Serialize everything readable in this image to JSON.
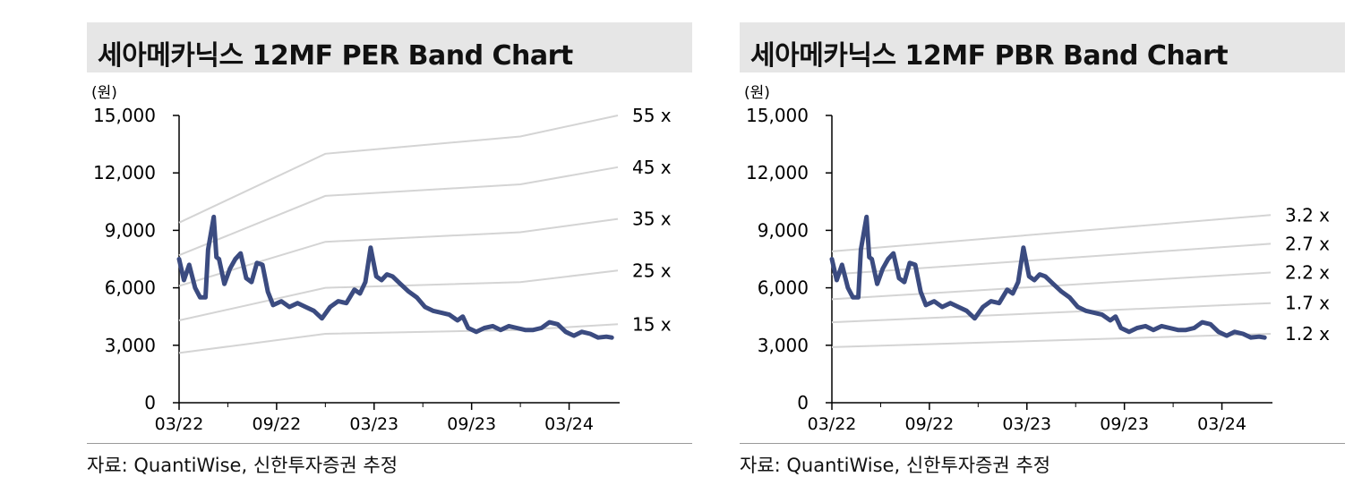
{
  "charts": [
    {
      "title": "세아메카닉스 12MF PER Band Chart",
      "source": "자료: QuantiWise, 신한투자증권 추정"
    },
    {
      "title": "세아메카닉스 12MF PBR Band Chart",
      "source": "자료: QuantiWise, 신한투자증권 추정"
    }
  ],
  "colors": {
    "price_line": "#3b4b80",
    "band_line": "#d4d4d4",
    "title_bg": "#e6e6e6",
    "axis": "#000000"
  },
  "chart_data": [
    {
      "type": "line",
      "title": "세아메카닉스 12MF PER Band Chart",
      "ylabel": "(원)",
      "ylim": [
        0,
        15000
      ],
      "yticks": [
        "0",
        "3,000",
        "6,000",
        "9,000",
        "12,000",
        "15,000"
      ],
      "xlim": [
        "2022-03",
        "2024-06"
      ],
      "xticks": [
        "03/22",
        "09/22",
        "03/23",
        "09/23",
        "03/24"
      ],
      "bands": [
        {
          "label": "55 x",
          "points": [
            [
              "2022-03",
              9400
            ],
            [
              "2022-12",
              13000
            ],
            [
              "2023-12",
              13900
            ],
            [
              "2024-06",
              15000
            ]
          ]
        },
        {
          "label": "45 x",
          "points": [
            [
              "2022-03",
              7700
            ],
            [
              "2022-12",
              10800
            ],
            [
              "2023-12",
              11400
            ],
            [
              "2024-06",
              12300
            ]
          ]
        },
        {
          "label": "35 x",
          "points": [
            [
              "2022-03",
              6100
            ],
            [
              "2022-12",
              8400
            ],
            [
              "2023-12",
              8900
            ],
            [
              "2024-06",
              9600
            ]
          ]
        },
        {
          "label": "25 x",
          "points": [
            [
              "2022-03",
              4300
            ],
            [
              "2022-12",
              6000
            ],
            [
              "2023-12",
              6300
            ],
            [
              "2024-06",
              6900
            ]
          ]
        },
        {
          "label": "15 x",
          "points": [
            [
              "2022-03",
              2600
            ],
            [
              "2022-12",
              3600
            ],
            [
              "2023-12",
              3800
            ],
            [
              "2024-06",
              4100
            ]
          ]
        }
      ]
    },
    {
      "type": "line",
      "title": "세아메카닉스 12MF PBR Band Chart",
      "ylabel": "(원)",
      "ylim": [
        0,
        15000
      ],
      "yticks": [
        "0",
        "3,000",
        "6,000",
        "9,000",
        "12,000",
        "15,000"
      ],
      "xlim": [
        "2022-03",
        "2024-06"
      ],
      "xticks": [
        "03/22",
        "09/22",
        "03/23",
        "09/23",
        "03/24"
      ],
      "bands": [
        {
          "label": "3.2 x",
          "points": [
            [
              "2022-03",
              7900
            ],
            [
              "2024-06",
              9800
            ]
          ]
        },
        {
          "label": "2.7 x",
          "points": [
            [
              "2022-03",
              6700
            ],
            [
              "2024-06",
              8300
            ]
          ]
        },
        {
          "label": "2.2 x",
          "points": [
            [
              "2022-03",
              5400
            ],
            [
              "2024-06",
              6800
            ]
          ]
        },
        {
          "label": "1.7 x",
          "points": [
            [
              "2022-03",
              4200
            ],
            [
              "2024-06",
              5200
            ]
          ]
        },
        {
          "label": "1.2 x",
          "points": [
            [
              "2022-03",
              2900
            ],
            [
              "2024-06",
              3600
            ]
          ]
        }
      ]
    }
  ],
  "price_series": {
    "name": "",
    "points": [
      [
        "2022-03-01",
        7500
      ],
      [
        "2022-03-10",
        6400
      ],
      [
        "2022-03-20",
        7200
      ],
      [
        "2022-03-31",
        6000
      ],
      [
        "2022-04-10",
        5500
      ],
      [
        "2022-04-20",
        5500
      ],
      [
        "2022-04-25",
        8000
      ],
      [
        "2022-05-05",
        9700
      ],
      [
        "2022-05-10",
        7600
      ],
      [
        "2022-05-15",
        7500
      ],
      [
        "2022-05-25",
        6200
      ],
      [
        "2022-06-05",
        7000
      ],
      [
        "2022-06-15",
        7500
      ],
      [
        "2022-06-25",
        7800
      ],
      [
        "2022-07-05",
        6500
      ],
      [
        "2022-07-15",
        6300
      ],
      [
        "2022-07-25",
        7300
      ],
      [
        "2022-08-05",
        7200
      ],
      [
        "2022-08-15",
        5800
      ],
      [
        "2022-08-25",
        5100
      ],
      [
        "2022-09-10",
        5300
      ],
      [
        "2022-09-25",
        5000
      ],
      [
        "2022-10-10",
        5200
      ],
      [
        "2022-10-25",
        5000
      ],
      [
        "2022-11-10",
        4800
      ],
      [
        "2022-11-25",
        4400
      ],
      [
        "2022-12-10",
        5000
      ],
      [
        "2022-12-25",
        5300
      ],
      [
        "2023-01-10",
        5200
      ],
      [
        "2023-01-25",
        5900
      ],
      [
        "2023-02-05",
        5700
      ],
      [
        "2023-02-15",
        6300
      ],
      [
        "2023-02-25",
        8100
      ],
      [
        "2023-03-05",
        6600
      ],
      [
        "2023-03-15",
        6400
      ],
      [
        "2023-03-25",
        6700
      ],
      [
        "2023-04-05",
        6600
      ],
      [
        "2023-04-20",
        6200
      ],
      [
        "2023-05-05",
        5800
      ],
      [
        "2023-05-20",
        5500
      ],
      [
        "2023-06-05",
        5000
      ],
      [
        "2023-06-20",
        4800
      ],
      [
        "2023-07-05",
        4700
      ],
      [
        "2023-07-20",
        4600
      ],
      [
        "2023-08-05",
        4300
      ],
      [
        "2023-08-15",
        4500
      ],
      [
        "2023-08-25",
        3900
      ],
      [
        "2023-09-10",
        3700
      ],
      [
        "2023-09-25",
        3900
      ],
      [
        "2023-10-10",
        4000
      ],
      [
        "2023-10-25",
        3800
      ],
      [
        "2023-11-10",
        4000
      ],
      [
        "2023-11-25",
        3900
      ],
      [
        "2023-12-10",
        3800
      ],
      [
        "2023-12-25",
        3800
      ],
      [
        "2024-01-10",
        3900
      ],
      [
        "2024-01-25",
        4200
      ],
      [
        "2024-02-10",
        4100
      ],
      [
        "2024-02-25",
        3700
      ],
      [
        "2024-03-10",
        3500
      ],
      [
        "2024-03-25",
        3700
      ],
      [
        "2024-04-10",
        3600
      ],
      [
        "2024-04-25",
        3400
      ],
      [
        "2024-05-10",
        3450
      ],
      [
        "2024-05-20",
        3400
      ]
    ]
  }
}
